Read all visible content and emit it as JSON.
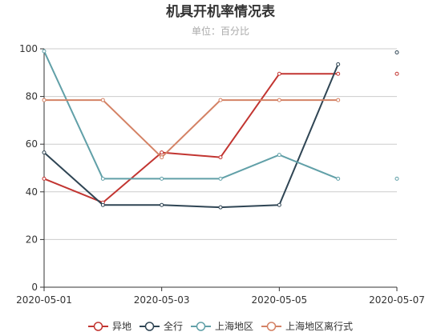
{
  "chart_data": {
    "type": "line",
    "title": "机具开机率情况表",
    "subtitle": "单位：百分比",
    "x": [
      "2020-05-01",
      "2020-05-02",
      "2020-05-03",
      "2020-05-04",
      "2020-05-05",
      "2020-05-06",
      "2020-05-07"
    ],
    "x_tick_labels": [
      "2020-05-01",
      "2020-05-03",
      "2020-05-05",
      "2020-05-07"
    ],
    "ylim": [
      0,
      100
    ],
    "y_ticks": [
      0,
      20,
      40,
      60,
      80,
      100
    ],
    "grid": true,
    "legend_position": "bottom",
    "series": [
      {
        "name": "异地",
        "color": "#c23531",
        "values": [
          45.5,
          35.5,
          56.5,
          54.5,
          89.5,
          89.5,
          89.5
        ],
        "line_to": "2020-05-06"
      },
      {
        "name": "全行",
        "color": "#2f4554",
        "values": [
          56.5,
          34.5,
          34.5,
          33.5,
          34.5,
          93.5,
          98.5
        ],
        "line_to": "2020-05-06"
      },
      {
        "name": "上海地区",
        "color": "#61a0a8",
        "values": [
          99,
          45.5,
          45.5,
          45.5,
          55.5,
          45.5,
          45.5
        ],
        "line_to": "2020-05-06"
      },
      {
        "name": "上海地区离行式",
        "color": "#d48265",
        "values": [
          78.5,
          78.5,
          54.5,
          78.5,
          78.5,
          78.5,
          null
        ],
        "line_to": "2020-05-06"
      }
    ]
  }
}
